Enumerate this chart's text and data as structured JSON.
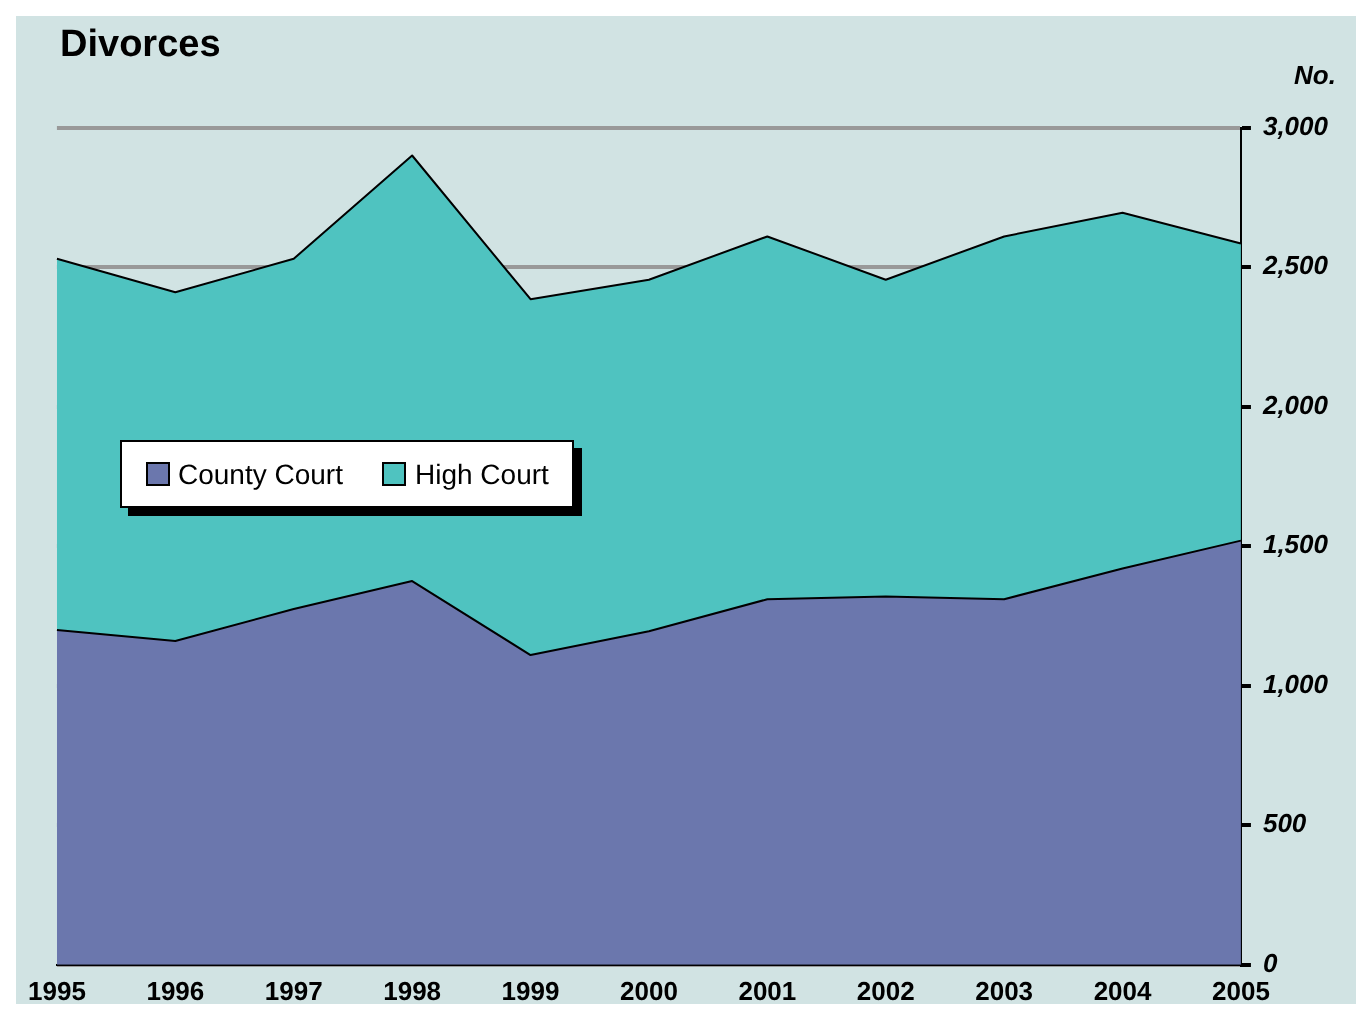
{
  "chart_data": {
    "type": "area",
    "title": "Divorces",
    "ylabel": "No.",
    "categories": [
      "1995",
      "1996",
      "1997",
      "1998",
      "1999",
      "2000",
      "2001",
      "2002",
      "2003",
      "2004",
      "2005"
    ],
    "stacked": true,
    "series": [
      {
        "name": "County Court",
        "color": "#6b77ad",
        "values": [
          1200,
          1160,
          1275,
          1375,
          1110,
          1195,
          1310,
          1320,
          1310,
          1420,
          1520
        ]
      },
      {
        "name": "High Court",
        "color": "#4fc3c0",
        "values": [
          1330,
          1250,
          1255,
          1525,
          1275,
          1260,
          1300,
          1135,
          1300,
          1275,
          1065
        ]
      }
    ],
    "ylim": [
      0,
      3000
    ],
    "yticks": [
      0,
      500,
      {
        "value": 1000,
        "label": "1,000"
      },
      {
        "value": 1500,
        "label": "1,500"
      },
      {
        "value": 2000,
        "label": "2,000"
      },
      {
        "value": 2500,
        "label": "2,500"
      },
      {
        "value": 3000,
        "label": "3,000"
      }
    ],
    "grid": "y",
    "legend": "left"
  }
}
